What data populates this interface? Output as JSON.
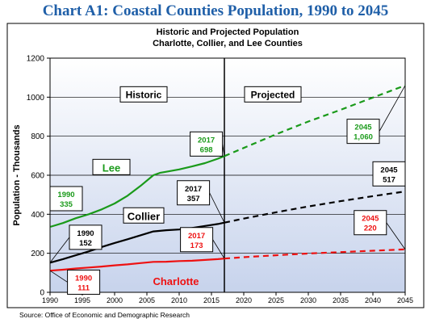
{
  "page_title": "Chart A1:  Coastal Counties Population, 1990 to 2045",
  "source": "Source:  Office of Economic and Demographic Research",
  "chart_data": {
    "type": "line",
    "title": "Historic and Projected Population",
    "subtitle": "Charlotte, Collier, and Lee Counties",
    "ylabel": "Population - Thousands",
    "xlabel": "",
    "xlim": [
      1990,
      2045
    ],
    "ylim": [
      0,
      1200
    ],
    "x_ticks": [
      1990,
      1995,
      2000,
      2005,
      2010,
      2015,
      2020,
      2025,
      2030,
      2035,
      2040,
      2045
    ],
    "y_ticks": [
      0,
      200,
      400,
      600,
      800,
      1000,
      1200
    ],
    "grid": "horizontal",
    "divider_year": 2017,
    "period_labels": [
      "Historic",
      "Projected"
    ],
    "series": [
      {
        "name": "Lee",
        "color": "#1a9a1a",
        "historic": {
          "x": [
            1990,
            1992,
            1994,
            1996,
            1998,
            2000,
            2002,
            2004,
            2006,
            2007,
            2008,
            2010,
            2012,
            2014,
            2016,
            2017
          ],
          "y": [
            335,
            355,
            380,
            400,
            425,
            455,
            495,
            545,
            600,
            612,
            618,
            630,
            645,
            662,
            685,
            698
          ]
        },
        "projected": {
          "x": [
            2017,
            2020,
            2025,
            2030,
            2035,
            2040,
            2045
          ],
          "y": [
            698,
            740,
            810,
            875,
            935,
            998,
            1060
          ]
        }
      },
      {
        "name": "Collier",
        "color": "#000000",
        "historic": {
          "x": [
            1990,
            1992,
            1994,
            1996,
            1998,
            2000,
            2002,
            2004,
            2006,
            2008,
            2010,
            2012,
            2014,
            2016,
            2017
          ],
          "y": [
            152,
            170,
            190,
            210,
            232,
            253,
            272,
            292,
            312,
            318,
            322,
            330,
            340,
            350,
            357
          ]
        },
        "projected": {
          "x": [
            2017,
            2020,
            2025,
            2030,
            2035,
            2040,
            2045
          ],
          "y": [
            357,
            378,
            410,
            440,
            467,
            493,
            517
          ]
        }
      },
      {
        "name": "Charlotte",
        "color": "#ee1111",
        "historic": {
          "x": [
            1990,
            1992,
            1994,
            1996,
            1998,
            2000,
            2002,
            2004,
            2006,
            2008,
            2010,
            2012,
            2014,
            2016,
            2017
          ],
          "y": [
            111,
            116,
            122,
            127,
            132,
            138,
            143,
            150,
            156,
            157,
            160,
            162,
            166,
            170,
            173
          ]
        },
        "projected": {
          "x": [
            2017,
            2020,
            2025,
            2030,
            2035,
            2040,
            2045
          ],
          "y": [
            173,
            180,
            190,
            199,
            206,
            213,
            220
          ]
        }
      }
    ],
    "annotations": [
      {
        "series": "Lee",
        "year": "1990",
        "value": "335"
      },
      {
        "series": "Lee",
        "year": "2017",
        "value": "698"
      },
      {
        "series": "Lee",
        "year": "2045",
        "value": "1,060"
      },
      {
        "series": "Collier",
        "year": "1990",
        "value": "152"
      },
      {
        "series": "Collier",
        "year": "2017",
        "value": "357"
      },
      {
        "series": "Collier",
        "year": "2045",
        "value": "517"
      },
      {
        "series": "Charlotte",
        "year": "1990",
        "value": "111"
      },
      {
        "series": "Charlotte",
        "year": "2017",
        "value": "173"
      },
      {
        "series": "Charlotte",
        "year": "2045",
        "value": "220"
      }
    ]
  }
}
